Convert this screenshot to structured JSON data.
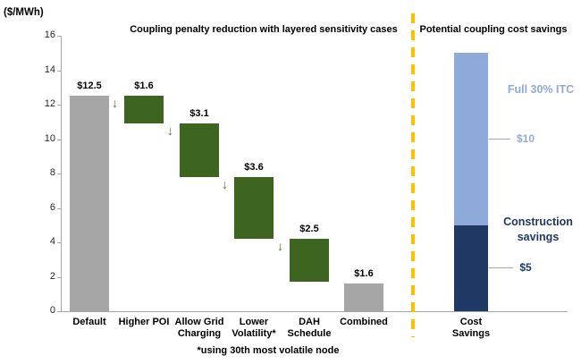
{
  "chart_data": [
    {
      "type": "bar",
      "subtype": "waterfall",
      "title": "Coupling penalty reduction with layered sensitivity cases",
      "ylabel": "($/MWh)",
      "ylim": [
        0,
        16
      ],
      "ytick_step": 2,
      "grid": false,
      "footnote": "*using 30th most volatile node",
      "bars": [
        {
          "category": "Default",
          "kind": "total",
          "value": 12.5,
          "span": [
            0,
            12.5
          ],
          "data_label": "$12.5"
        },
        {
          "category": "Higher POI",
          "kind": "decrease",
          "value": 1.6,
          "span": [
            10.9,
            12.5
          ],
          "data_label": "$1.6"
        },
        {
          "category": "Allow Grid Charging",
          "kind": "decrease",
          "value": 3.1,
          "span": [
            7.8,
            10.9
          ],
          "data_label": "$3.1"
        },
        {
          "category": "Lower Volatility*",
          "kind": "decrease",
          "value": 3.6,
          "span": [
            4.2,
            7.8
          ],
          "data_label": "$3.6"
        },
        {
          "category": "DAH Schedule",
          "kind": "decrease",
          "value": 2.5,
          "span": [
            1.7,
            4.2
          ],
          "data_label": "$2.5"
        },
        {
          "category": "Combined",
          "kind": "total",
          "value": 1.6,
          "span": [
            0,
            1.6
          ],
          "data_label": "$1.6"
        }
      ]
    },
    {
      "type": "bar",
      "subtype": "stacked",
      "title": "Potential coupling cost savings",
      "categories": [
        "Cost Savings"
      ],
      "ylim": [
        0,
        16
      ],
      "series": [
        {
          "name": "Construction savings",
          "values": [
            5
          ],
          "span": [
            0,
            5
          ],
          "data_label": "$5",
          "color": "#1f3864"
        },
        {
          "name": "Full 30% ITC",
          "values": [
            10
          ],
          "span": [
            5,
            15
          ],
          "data_label": "$10",
          "color": "#8eaadb"
        }
      ]
    }
  ],
  "colors": {
    "total_bar": "#a6a6a6",
    "decrease_bar": "#3e651f",
    "arrow": "#4e7a28",
    "itc_segment": "#8eaadb",
    "construction_segment": "#1f3864",
    "divider": "#ffc000",
    "axis": "#a6a6a6",
    "label_text": "#000000"
  }
}
